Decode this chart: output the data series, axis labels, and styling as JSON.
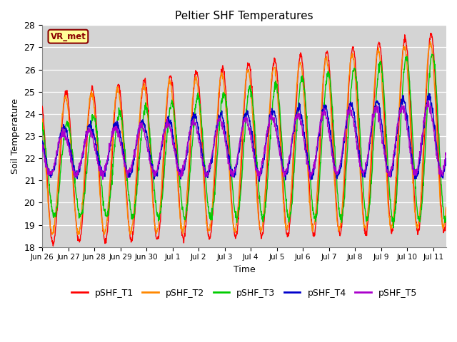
{
  "title": "Peltier SHF Temperatures",
  "xlabel": "Time",
  "ylabel": "Soil Temperature",
  "ylim": [
    18.0,
    28.0
  ],
  "yticks": [
    18.0,
    19.0,
    20.0,
    21.0,
    22.0,
    23.0,
    24.0,
    25.0,
    26.0,
    27.0,
    28.0
  ],
  "line_colors": [
    "#ff0000",
    "#ff8800",
    "#00cc00",
    "#0000cc",
    "#aa00cc"
  ],
  "line_labels": [
    "pSHF_T1",
    "pSHF_T2",
    "pSHF_T3",
    "pSHF_T4",
    "pSHF_T5"
  ],
  "line_width": 1.0,
  "fig_facecolor": "#ffffff",
  "axes_facecolor": "#d4d4d4",
  "grid_color": "#ffffff",
  "vr_met_label": "VR_met",
  "vr_met_bg": "#ffff99",
  "vr_met_border": "#8b0000",
  "n_days": 15.5,
  "samples_per_day": 96,
  "xtick_labels": [
    "Jun 26",
    "Jun 27",
    "Jun 28",
    "Jun 29",
    "Jun 30",
    "Jul 1",
    "Jul 2",
    "Jul 3",
    "Jul 4",
    "Jul 5",
    "Jul 6",
    "Jul 7",
    "Jul 8",
    "Jul 9",
    "Jul 10",
    "Jul 11"
  ],
  "xtick_positions": [
    0,
    1,
    2,
    3,
    4,
    5,
    6,
    7,
    8,
    9,
    10,
    11,
    12,
    13,
    14,
    15
  ]
}
